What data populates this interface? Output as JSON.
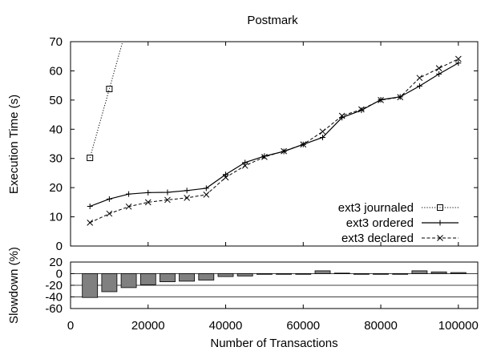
{
  "chart_data": [
    {
      "type": "line",
      "title": "Postmark",
      "ylabel": "Execution Time (s)",
      "xlabel": "",
      "xlim": [
        0,
        105000
      ],
      "ylim": [
        0,
        70
      ],
      "yticks": [
        0,
        10,
        20,
        30,
        40,
        50,
        60,
        70
      ],
      "grid": false,
      "legend_position": "bottom-right",
      "series": [
        {
          "name": "ext3 journaled",
          "marker": "square",
          "line_style": "dotted",
          "x": [
            5000,
            10000
          ],
          "y": [
            30.2,
            53.8
          ],
          "continues_above_axis": true
        },
        {
          "name": "ext3 ordered",
          "marker": "plus",
          "line_style": "solid",
          "x": [
            5000,
            10000,
            15000,
            20000,
            25000,
            30000,
            35000,
            40000,
            45000,
            50000,
            55000,
            60000,
            65000,
            70000,
            75000,
            80000,
            85000,
            90000,
            95000,
            100000
          ],
          "y": [
            13.6,
            16.1,
            17.8,
            18.3,
            18.4,
            19.0,
            19.8,
            24.5,
            28.6,
            30.8,
            32.4,
            34.8,
            37.2,
            44.0,
            46.5,
            50.1,
            51.1,
            54.8,
            58.9,
            62.7
          ]
        },
        {
          "name": "ext3 declared",
          "marker": "x",
          "line_style": "dashed",
          "x": [
            5000,
            10000,
            15000,
            20000,
            25000,
            30000,
            35000,
            40000,
            45000,
            50000,
            55000,
            60000,
            65000,
            70000,
            75000,
            80000,
            85000,
            90000,
            95000,
            100000
          ],
          "y": [
            8.0,
            11.1,
            13.5,
            15.0,
            15.8,
            16.5,
            17.6,
            23.5,
            27.5,
            30.5,
            32.5,
            34.8,
            39.2,
            44.6,
            46.8,
            50.0,
            51.0,
            57.6,
            60.9,
            64.1
          ]
        }
      ]
    },
    {
      "type": "bar",
      "title": "",
      "ylabel": "Slowdown (%)",
      "xlabel": "Number of Transactions",
      "xlim": [
        0,
        105000
      ],
      "ylim": [
        -60,
        20
      ],
      "yticks": [
        20,
        0,
        -20,
        -40,
        -60
      ],
      "xticks": [
        0,
        20000,
        40000,
        60000,
        80000,
        100000
      ],
      "grid": "horizontal",
      "bar_color": "#808080",
      "x": [
        5000,
        10000,
        15000,
        20000,
        25000,
        30000,
        35000,
        40000,
        45000,
        50000,
        55000,
        60000,
        65000,
        70000,
        75000,
        80000,
        85000,
        90000,
        95000,
        100000
      ],
      "values": [
        -41,
        -31,
        -24,
        -19,
        -14,
        -13,
        -11,
        -5,
        -4,
        -1,
        0,
        0,
        5,
        1,
        0,
        0,
        -1,
        5,
        3,
        2
      ]
    }
  ]
}
